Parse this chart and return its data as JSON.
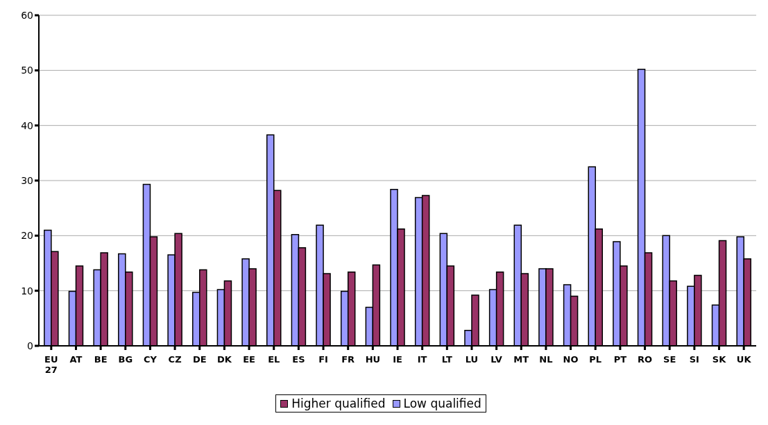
{
  "chart_data": {
    "type": "bar",
    "categories": [
      "EU 27",
      "AT",
      "BE",
      "BG",
      "CY",
      "CZ",
      "DE",
      "DK",
      "EE",
      "EL",
      "ES",
      "FI",
      "FR",
      "HU",
      "IE",
      "IT",
      "LT",
      "LU",
      "LV",
      "MT",
      "NL",
      "NO",
      "PL",
      "PT",
      "RO",
      "SE",
      "SI",
      "SK",
      "UK"
    ],
    "series": [
      {
        "name": "Low qualified",
        "color": "#9999ff",
        "values": [
          21,
          9.9,
          13.8,
          16.7,
          29.3,
          16.5,
          9.7,
          10.2,
          15.8,
          38.3,
          20.2,
          21.9,
          9.9,
          7.0,
          28.4,
          26.9,
          20.4,
          2.8,
          10.2,
          21.9,
          14.0,
          11.1,
          32.5,
          18.9,
          50.2,
          20.0,
          10.8,
          7.4,
          19.8
        ]
      },
      {
        "name": "Higher qualified",
        "color": "#993366",
        "values": [
          17.1,
          14.5,
          16.9,
          13.4,
          19.8,
          20.4,
          13.8,
          11.8,
          14.0,
          28.2,
          17.8,
          13.1,
          13.4,
          14.7,
          21.2,
          27.3,
          14.5,
          9.2,
          13.4,
          13.1,
          14.0,
          9.0,
          21.2,
          14.5,
          16.9,
          11.8,
          12.8,
          19.1,
          15.8
        ]
      }
    ],
    "ylim": [
      0,
      60
    ],
    "yticks": [
      0,
      10,
      20,
      30,
      40,
      50,
      60
    ],
    "grid": "y",
    "legend": "bottom"
  }
}
